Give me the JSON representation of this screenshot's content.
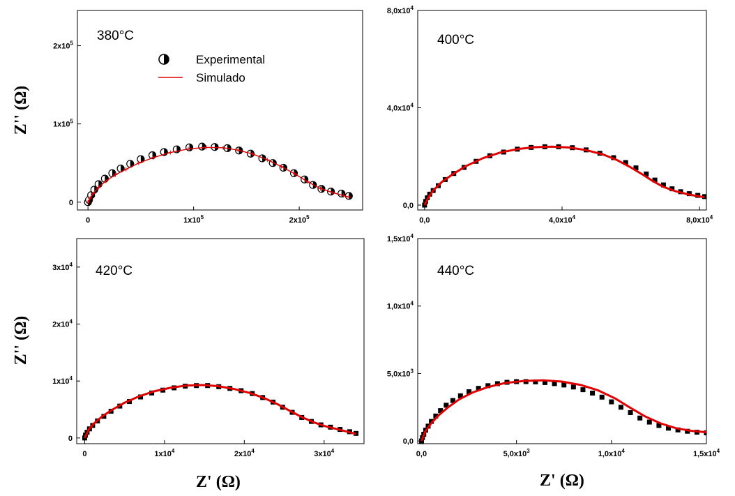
{
  "figure": {
    "y_axis_label": "Z'' (Ω)",
    "x_axis_label": "Z' (Ω)"
  },
  "legend": {
    "experimental": "Experimental",
    "simulated": "Simulado"
  },
  "colors": {
    "simulated_line": "#e00000",
    "experimental_marker": "#000000"
  },
  "chart_data": [
    {
      "type": "scatter",
      "title": "380°C",
      "marker": "half-filled-circle",
      "xlim": [
        -10000,
        260000
      ],
      "ylim": [
        -10000,
        245000
      ],
      "xticks": [
        {
          "v": 0,
          "label": "0"
        },
        {
          "v": 100000,
          "label": "1x10",
          "exp": "5"
        },
        {
          "v": 200000,
          "label": "2x10",
          "exp": "5"
        }
      ],
      "yticks": [
        {
          "v": 0,
          "label": "0"
        },
        {
          "v": 100000,
          "label": "1x10",
          "exp": "5"
        },
        {
          "v": 200000,
          "label": "2x10",
          "exp": "5"
        }
      ],
      "series": [
        {
          "name": "Experimental",
          "points": [
            [
              0,
              0
            ],
            [
              1000,
              3000
            ],
            [
              3000,
              9000
            ],
            [
              6000,
              16000
            ],
            [
              10000,
              23000
            ],
            [
              16000,
              30000
            ],
            [
              23000,
              37000
            ],
            [
              31000,
              43000
            ],
            [
              40000,
              49000
            ],
            [
              50000,
              55000
            ],
            [
              61000,
              60000
            ],
            [
              72000,
              64000
            ],
            [
              84000,
              67500
            ],
            [
              96000,
              70000
            ],
            [
              108000,
              71000
            ],
            [
              120000,
              70500
            ],
            [
              132000,
              69000
            ],
            [
              143000,
              66000
            ],
            [
              154000,
              62000
            ],
            [
              165000,
              56000
            ],
            [
              175000,
              50000
            ],
            [
              185000,
              44000
            ],
            [
              195000,
              37000
            ],
            [
              205000,
              29000
            ],
            [
              213000,
              22000
            ],
            [
              221000,
              17000
            ],
            [
              230000,
              13500
            ],
            [
              240000,
              11000
            ],
            [
              247000,
              8000
            ]
          ]
        },
        {
          "name": "Simulado",
          "points": [
            [
              0,
              0
            ],
            [
              2000,
              5000
            ],
            [
              5000,
              11000
            ],
            [
              10000,
              19000
            ],
            [
              17000,
              27000
            ],
            [
              26000,
              35000
            ],
            [
              36000,
              42000
            ],
            [
              48000,
              50000
            ],
            [
              62000,
              57000
            ],
            [
              78000,
              63500
            ],
            [
              95000,
              68000
            ],
            [
              112000,
              70000
            ],
            [
              128000,
              69500
            ],
            [
              142000,
              66500
            ],
            [
              156000,
              61500
            ],
            [
              170000,
              54000
            ],
            [
              183000,
              45500
            ],
            [
              196000,
              36000
            ],
            [
              208000,
              26000
            ],
            [
              220000,
              17500
            ],
            [
              232000,
              12000
            ],
            [
              242000,
              8500
            ],
            [
              247000,
              6500
            ]
          ]
        }
      ]
    },
    {
      "type": "scatter",
      "title": "400°C",
      "marker": "filled-square",
      "xlim": [
        -2000,
        82000
      ],
      "ylim": [
        -2000,
        80000
      ],
      "xticks": [
        {
          "v": 0,
          "label": "0,0"
        },
        {
          "v": 40000,
          "label": "4,0x10",
          "exp": "4"
        },
        {
          "v": 80000,
          "label": "8,0x10",
          "exp": "4"
        }
      ],
      "yticks": [
        {
          "v": 0,
          "label": "0,0"
        },
        {
          "v": 40000,
          "label": "4,0x10",
          "exp": "4"
        },
        {
          "v": 80000,
          "label": "8,0x10",
          "exp": "4"
        }
      ],
      "series": [
        {
          "name": "Experimental",
          "points": [
            [
              0,
              0
            ],
            [
              300,
              1500
            ],
            [
              800,
              3000
            ],
            [
              1500,
              4500
            ],
            [
              2500,
              6000
            ],
            [
              4000,
              8000
            ],
            [
              6000,
              10500
            ],
            [
              8500,
              13000
            ],
            [
              11500,
              15500
            ],
            [
              15000,
              18000
            ],
            [
              19000,
              20300
            ],
            [
              23000,
              21800
            ],
            [
              27000,
              23000
            ],
            [
              31000,
              23700
            ],
            [
              35000,
              24000
            ],
            [
              39000,
              24000
            ],
            [
              43000,
              23600
            ],
            [
              47000,
              22700
            ],
            [
              51000,
              21300
            ],
            [
              55000,
              19500
            ],
            [
              58500,
              17500
            ],
            [
              61500,
              15300
            ],
            [
              64500,
              12800
            ],
            [
              67000,
              10300
            ],
            [
              69500,
              8300
            ],
            [
              72000,
              6700
            ],
            [
              74500,
              5500
            ],
            [
              77000,
              4700
            ],
            [
              79500,
              4000
            ],
            [
              81500,
              3500
            ]
          ]
        },
        {
          "name": "Simulado",
          "points": [
            [
              0,
              0
            ],
            [
              1000,
              3000
            ],
            [
              2500,
              6000
            ],
            [
              5000,
              9500
            ],
            [
              8000,
              12500
            ],
            [
              12000,
              16000
            ],
            [
              17000,
              19300
            ],
            [
              22000,
              21600
            ],
            [
              27000,
              23000
            ],
            [
              32000,
              23800
            ],
            [
              37000,
              24000
            ],
            [
              42000,
              23700
            ],
            [
              47000,
              22600
            ],
            [
              52000,
              20800
            ],
            [
              56000,
              18500
            ],
            [
              60000,
              15500
            ],
            [
              63500,
              12500
            ],
            [
              66500,
              9800
            ],
            [
              69500,
              7500
            ],
            [
              73000,
              5700
            ],
            [
              77000,
              4300
            ],
            [
              81500,
              3200
            ]
          ]
        }
      ]
    },
    {
      "type": "scatter",
      "title": "420°C",
      "marker": "filled-square",
      "xlim": [
        -1000,
        35000
      ],
      "ylim": [
        -1000,
        35000
      ],
      "xticks": [
        {
          "v": 0,
          "label": "0"
        },
        {
          "v": 10000,
          "label": "1x10",
          "exp": "4"
        },
        {
          "v": 20000,
          "label": "2x10",
          "exp": "4"
        },
        {
          "v": 30000,
          "label": "3x10",
          "exp": "4"
        }
      ],
      "yticks": [
        {
          "v": 0,
          "label": "0"
        },
        {
          "v": 10000,
          "label": "1x10",
          "exp": "4"
        },
        {
          "v": 20000,
          "label": "2x10",
          "exp": "4"
        },
        {
          "v": 30000,
          "label": "3x10",
          "exp": "4"
        }
      ],
      "series": [
        {
          "name": "Experimental",
          "points": [
            [
              0,
              0
            ],
            [
              100,
              500
            ],
            [
              300,
              1000
            ],
            [
              600,
              1600
            ],
            [
              1000,
              2200
            ],
            [
              1600,
              3000
            ],
            [
              2400,
              3800
            ],
            [
              3300,
              4700
            ],
            [
              4400,
              5600
            ],
            [
              5600,
              6400
            ],
            [
              7000,
              7200
            ],
            [
              8400,
              7900
            ],
            [
              9800,
              8400
            ],
            [
              11200,
              8800
            ],
            [
              12600,
              9100
            ],
            [
              14000,
              9200
            ],
            [
              15400,
              9200
            ],
            [
              16800,
              9000
            ],
            [
              18200,
              8700
            ],
            [
              19600,
              8300
            ],
            [
              21000,
              7800
            ],
            [
              22300,
              7100
            ],
            [
              23600,
              6300
            ],
            [
              24800,
              5400
            ],
            [
              26000,
              4500
            ],
            [
              27200,
              3600
            ],
            [
              28400,
              2900
            ],
            [
              29600,
              2300
            ],
            [
              30800,
              1900
            ],
            [
              32000,
              1500
            ],
            [
              33200,
              1100
            ],
            [
              34000,
              800
            ]
          ]
        },
        {
          "name": "Simulado",
          "points": [
            [
              0,
              0
            ],
            [
              500,
              1500
            ],
            [
              1200,
              2600
            ],
            [
              2200,
              3800
            ],
            [
              3500,
              5000
            ],
            [
              5000,
              6200
            ],
            [
              6800,
              7300
            ],
            [
              8700,
              8200
            ],
            [
              10700,
              8800
            ],
            [
              12700,
              9200
            ],
            [
              14700,
              9300
            ],
            [
              16700,
              9100
            ],
            [
              18700,
              8600
            ],
            [
              20700,
              7900
            ],
            [
              22500,
              7000
            ],
            [
              24200,
              5900
            ],
            [
              25800,
              4700
            ],
            [
              27300,
              3600
            ],
            [
              28800,
              2700
            ],
            [
              30300,
              2000
            ],
            [
              31800,
              1500
            ],
            [
              33200,
              1000
            ],
            [
              34000,
              700
            ]
          ]
        }
      ]
    },
    {
      "type": "scatter",
      "title": "440°C",
      "marker": "filled-square",
      "xlim": [
        -200,
        15000
      ],
      "ylim": [
        -200,
        15000
      ],
      "xticks": [
        {
          "v": 0,
          "label": "0,0"
        },
        {
          "v": 5000,
          "label": "5,0x10",
          "exp": "3"
        },
        {
          "v": 10000,
          "label": "1,0x10",
          "exp": "4"
        },
        {
          "v": 15000,
          "label": "1,5x10",
          "exp": "4"
        }
      ],
      "yticks": [
        {
          "v": 0,
          "label": "0,0"
        },
        {
          "v": 5000,
          "label": "5,0x10",
          "exp": "3"
        },
        {
          "v": 10000,
          "label": "1,0x10",
          "exp": "4"
        },
        {
          "v": 15000,
          "label": "1,5x10",
          "exp": "4"
        }
      ],
      "series": [
        {
          "name": "Experimental",
          "points": [
            [
              0,
              0
            ],
            [
              50,
              250
            ],
            [
              120,
              500
            ],
            [
              220,
              800
            ],
            [
              350,
              1100
            ],
            [
              520,
              1450
            ],
            [
              750,
              1850
            ],
            [
              1000,
              2250
            ],
            [
              1300,
              2650
            ],
            [
              1650,
              3000
            ],
            [
              2050,
              3350
            ],
            [
              2500,
              3650
            ],
            [
              3000,
              3900
            ],
            [
              3500,
              4100
            ],
            [
              4000,
              4250
            ],
            [
              4500,
              4350
            ],
            [
              5000,
              4400
            ],
            [
              5500,
              4400
            ],
            [
              6000,
              4380
            ],
            [
              6500,
              4330
            ],
            [
              7000,
              4250
            ],
            [
              7500,
              4150
            ],
            [
              8000,
              4000
            ],
            [
              8500,
              3800
            ],
            [
              9000,
              3550
            ],
            [
              9500,
              3250
            ],
            [
              10000,
              2900
            ],
            [
              10500,
              2500
            ],
            [
              11000,
              2100
            ],
            [
              11500,
              1700
            ],
            [
              12000,
              1400
            ],
            [
              12500,
              1150
            ],
            [
              13000,
              950
            ],
            [
              13500,
              820
            ],
            [
              14000,
              720
            ],
            [
              14500,
              650
            ],
            [
              15000,
              600
            ]
          ]
        },
        {
          "name": "Simulado",
          "points": [
            [
              0,
              0
            ],
            [
              200,
              700
            ],
            [
              500,
              1300
            ],
            [
              900,
              1900
            ],
            [
              1400,
              2500
            ],
            [
              2000,
              3100
            ],
            [
              2700,
              3600
            ],
            [
              3500,
              4000
            ],
            [
              4400,
              4300
            ],
            [
              5400,
              4450
            ],
            [
              6400,
              4500
            ],
            [
              7400,
              4400
            ],
            [
              8400,
              4150
            ],
            [
              9300,
              3750
            ],
            [
              10200,
              3150
            ],
            [
              11000,
              2450
            ],
            [
              11800,
              1800
            ],
            [
              12600,
              1300
            ],
            [
              13400,
              950
            ],
            [
              14200,
              750
            ],
            [
              15000,
              650
            ]
          ]
        }
      ]
    }
  ]
}
